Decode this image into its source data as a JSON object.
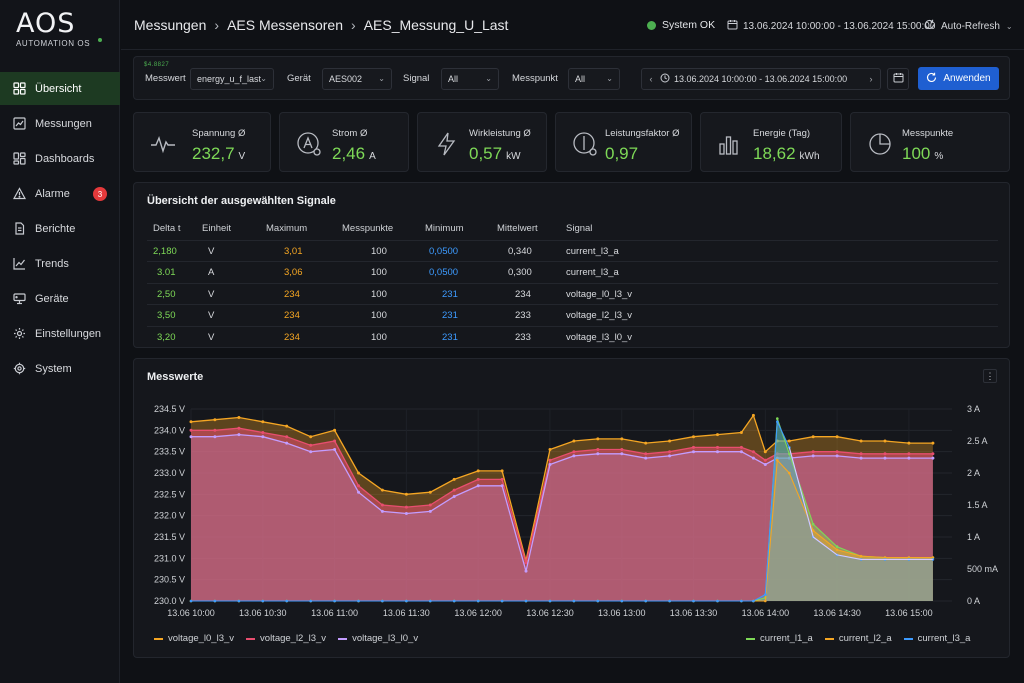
{
  "app": {
    "logo": "AOS",
    "logo_sub": "AUTOMATION OS"
  },
  "sidebar": {
    "items": [
      {
        "label": "Übersicht",
        "icon": "dashboard-grid-icon",
        "active": true
      },
      {
        "label": "Messungen",
        "icon": "chart-list-icon"
      },
      {
        "label": "Dashboards",
        "icon": "dashboards-icon"
      },
      {
        "label": "Alarme",
        "icon": "alert-triangle-icon",
        "badge": "3"
      },
      {
        "label": "Berichte",
        "icon": "document-icon"
      },
      {
        "label": "Trends",
        "icon": "trend-line-icon"
      },
      {
        "label": "Geräte",
        "icon": "device-icon"
      },
      {
        "label": "Einstellungen",
        "icon": "gear-icon"
      },
      {
        "label": "System",
        "icon": "system-gear-icon"
      }
    ]
  },
  "header": {
    "breadcrumb": [
      "Messungen",
      "AES Messensoren",
      "AES_Messung_U_Last"
    ],
    "status": "System OK",
    "time_range": "13.06.2024 10:00:00 - 13.06.2024 15:00:00",
    "auto_refresh": "Auto-Refresh"
  },
  "filters": {
    "mini_logo": "$4.8827",
    "messwert_label": "Messwert",
    "messwert_value": "energy_u_f_last",
    "geraet_label": "Gerät",
    "geraet_value": "AES002",
    "signal_label": "Signal",
    "signal_value": "All",
    "messpunkt_label": "Messpunkt",
    "messpunkt_value": "All",
    "date_range": "13.06.2024 10:00:00 - 13.06.2024 15:00:00",
    "apply_label": "Anwenden"
  },
  "kpis": [
    {
      "label": "Spannung Ø",
      "value": "232,7",
      "unit": "V",
      "icon": "pulse-icon"
    },
    {
      "label": "Strom Ø",
      "value": "2,46",
      "unit": "A",
      "icon": "ammeter-icon"
    },
    {
      "label": "Wirkleistung Ø",
      "value": "0,57",
      "unit": "kW",
      "icon": "lightning-icon"
    },
    {
      "label": "Leistungsfaktor Ø",
      "value": "0,97",
      "unit": "",
      "icon": "power-factor-icon"
    },
    {
      "label": "Energie (Tag)",
      "value": "18,62",
      "unit": "kWh",
      "icon": "bar-chart-icon"
    },
    {
      "label": "Messpunkte",
      "value": "100",
      "unit": "%",
      "icon": "pie-chart-icon"
    }
  ],
  "signal_table": {
    "title": "Übersicht der ausgewählten Signale",
    "headers": [
      "Delta t",
      "Einheit",
      "Maximum",
      "Messpunkte",
      "Minimum",
      "Mittelwert",
      "Signal"
    ],
    "rows": [
      [
        "2,180",
        "V",
        "3,01",
        "100",
        "0,0500",
        "0,340",
        "current_l3_a"
      ],
      [
        "3.01",
        "A",
        "3,06",
        "100",
        "0,0500",
        "0,300",
        "current_l3_a"
      ],
      [
        "2,50",
        "V",
        "234",
        "100",
        "231",
        "234",
        "voltage_l0_l3_v"
      ],
      [
        "3,50",
        "V",
        "234",
        "100",
        "231",
        "233",
        "voltage_l2_l3_v"
      ],
      [
        "3,20",
        "V",
        "234",
        "100",
        "231",
        "233",
        "voltage_l3_l0_v"
      ]
    ]
  },
  "chart_panel": {
    "title": "Messwerte",
    "menu": "⋮"
  },
  "chart_data": {
    "type": "area",
    "title": "Messwerte",
    "x": [
      "10:00",
      "10:10",
      "10:20",
      "10:30",
      "10:40",
      "10:50",
      "11:00",
      "11:10",
      "11:20",
      "11:30",
      "11:40",
      "11:50",
      "12:00",
      "12:10",
      "12:20",
      "12:30",
      "12:40",
      "12:50",
      "13:00",
      "13:10",
      "13:20",
      "13:30",
      "13:40",
      "13:50",
      "13:55",
      "14:00",
      "14:05",
      "14:10",
      "14:20",
      "14:30",
      "14:40",
      "14:50",
      "15:00",
      "15:10"
    ],
    "xticks": [
      "13.06 10:00",
      "13.06 10:30",
      "13.06 11:00",
      "13.06 11:30",
      "13.06 12:00",
      "13.06 12:30",
      "13.06 13:00",
      "13.06 13:30",
      "13.06 14:00",
      "13.06 14:30",
      "13.06 15:00"
    ],
    "y_left": {
      "ticks": [
        "230.0 V",
        "230.5 V",
        "231.0 V",
        "231.5 V",
        "232.0 V",
        "232.5 V",
        "233.0 V",
        "233.5 V",
        "234.0 V",
        "234.5 V"
      ],
      "range": [
        230.0,
        234.5
      ]
    },
    "y_right": {
      "ticks": [
        "0 A",
        "500 mA",
        "1 A",
        "1.5 A",
        "2 A",
        "2.5 A",
        "3 A"
      ],
      "range": [
        0,
        3
      ]
    },
    "voltage_series": [
      {
        "name": "voltage_l0_l3_v",
        "color": "#f5a623",
        "values": [
          234.2,
          234.25,
          234.3,
          234.2,
          234.1,
          233.85,
          234.0,
          233.0,
          232.6,
          232.5,
          232.55,
          232.85,
          233.05,
          233.05,
          230.95,
          233.55,
          233.75,
          233.8,
          233.8,
          233.7,
          233.75,
          233.85,
          233.9,
          233.95,
          234.35,
          233.5,
          233.75,
          233.75,
          233.85,
          233.85,
          233.75,
          233.75,
          233.7,
          233.7
        ]
      },
      {
        "name": "voltage_l2_l3_v",
        "color": "#e84e6f",
        "values": [
          234.0,
          234.0,
          234.05,
          233.95,
          233.85,
          233.65,
          233.75,
          232.7,
          232.25,
          232.2,
          232.25,
          232.6,
          232.85,
          232.85,
          230.9,
          233.3,
          233.5,
          233.55,
          233.55,
          233.45,
          233.5,
          233.6,
          233.6,
          233.6,
          233.5,
          233.3,
          233.45,
          233.45,
          233.5,
          233.5,
          233.45,
          233.45,
          233.45,
          233.45
        ]
      },
      {
        "name": "voltage_l3_l0_v",
        "color": "#c39dff",
        "values": [
          233.85,
          233.85,
          233.9,
          233.85,
          233.7,
          233.5,
          233.55,
          232.55,
          232.1,
          232.05,
          232.1,
          232.45,
          232.7,
          232.7,
          230.7,
          233.2,
          233.4,
          233.45,
          233.45,
          233.35,
          233.4,
          233.5,
          233.5,
          233.5,
          233.35,
          233.2,
          233.35,
          233.35,
          233.4,
          233.4,
          233.35,
          233.35,
          233.35,
          233.35
        ]
      }
    ],
    "current_series": [
      {
        "name": "current_l1_a",
        "color": "#7ed957",
        "values": [
          0,
          0,
          0,
          0,
          0,
          0,
          0,
          0,
          0,
          0,
          0,
          0,
          0,
          0,
          0,
          0,
          0,
          0,
          0,
          0,
          0,
          0,
          0,
          0,
          0,
          0.05,
          2.85,
          2.3,
          1.2,
          0.85,
          0.7,
          0.68,
          0.68,
          0.68
        ]
      },
      {
        "name": "current_l2_a",
        "color": "#f5a623",
        "values": [
          0,
          0,
          0,
          0,
          0,
          0,
          0,
          0,
          0,
          0,
          0,
          0,
          0,
          0,
          0,
          0,
          0,
          0,
          0,
          0,
          0,
          0,
          0,
          0,
          0,
          0.0,
          2.2,
          2.0,
          1.1,
          0.8,
          0.7,
          0.68,
          0.68,
          0.68
        ]
      },
      {
        "name": "current_l3_a",
        "color": "#3d9bff",
        "values": [
          0,
          0,
          0,
          0,
          0,
          0,
          0,
          0,
          0,
          0,
          0,
          0,
          0,
          0,
          0,
          0,
          0,
          0,
          0,
          0,
          0,
          0,
          0,
          0,
          0,
          0.1,
          2.8,
          2.4,
          1.0,
          0.72,
          0.65,
          0.65,
          0.65,
          0.65
        ]
      }
    ],
    "legend_left": [
      "voltage_l0_l3_v",
      "voltage_l2_l3_v",
      "voltage_l3_l0_v"
    ],
    "legend_right": [
      "current_l1_a",
      "current_l2_a",
      "current_l3_a"
    ],
    "legend_colors": {
      "voltage_l0_l3_v": "#f5a623",
      "voltage_l2_l3_v": "#e84e6f",
      "voltage_l3_l0_v": "#c39dff",
      "current_l1_a": "#7ed957",
      "current_l2_a": "#f5a623",
      "current_l3_a": "#3d9bff"
    },
    "grid": true
  }
}
